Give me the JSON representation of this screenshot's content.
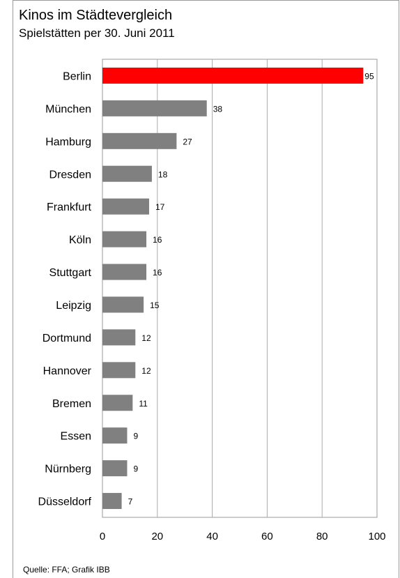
{
  "chart_data": {
    "type": "bar",
    "orientation": "horizontal",
    "title": "Kinos im Städtevergleich",
    "subtitle": "Spielstätten per 30. Juni 2011",
    "categories": [
      "Berlin",
      "München",
      "Hamburg",
      "Dresden",
      "Frankfurt",
      "Köln",
      "Stuttgart",
      "Leipzig",
      "Dortmund",
      "Hannover",
      "Bremen",
      "Essen",
      "Nürnberg",
      "Düsseldorf"
    ],
    "values": [
      95,
      38,
      27,
      18,
      17,
      16,
      16,
      15,
      12,
      12,
      11,
      9,
      9,
      7
    ],
    "xlim": [
      0,
      100
    ],
    "xticks": [
      0,
      20,
      40,
      60,
      80,
      100
    ],
    "grid": true,
    "highlight_category": "Berlin",
    "colors": {
      "highlight": "#ff0000",
      "default": "#808080"
    },
    "source": "Quelle: FFA; Grafik IBB"
  }
}
